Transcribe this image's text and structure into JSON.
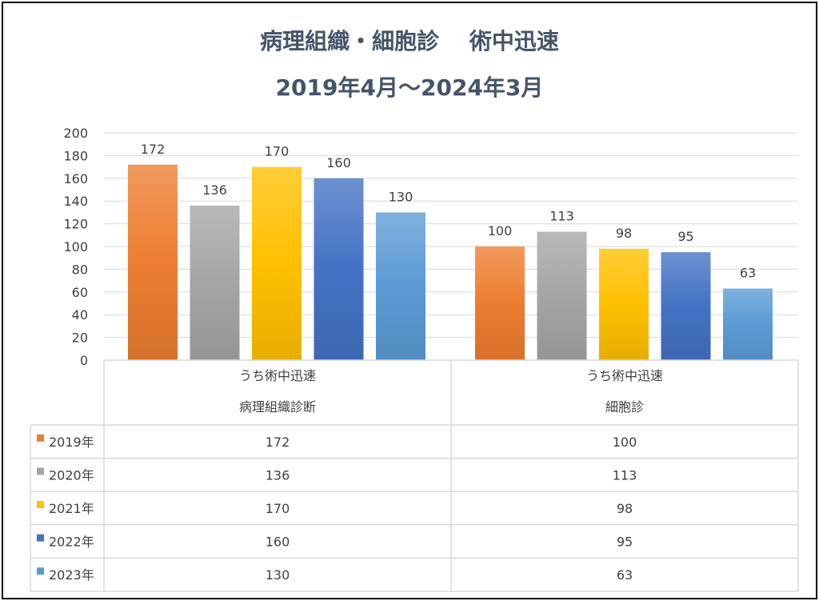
{
  "chart_data": {
    "type": "bar",
    "title": "病理組織・細胞診　 術中迅速",
    "subtitle": "2019年4月～2024年3月",
    "categories": [
      {
        "line1": "うち術中迅速",
        "line2": "病理組織診断"
      },
      {
        "line1": "うち術中迅速",
        "line2": "細胞診"
      }
    ],
    "series": [
      {
        "name": "2019年",
        "values": [
          172,
          100
        ],
        "color": "#ed7d31"
      },
      {
        "name": "2020年",
        "values": [
          136,
          113
        ],
        "color": "#a5a5a5"
      },
      {
        "name": "2021年",
        "values": [
          170,
          98
        ],
        "color": "#ffc000"
      },
      {
        "name": "2022年",
        "values": [
          160,
          95
        ],
        "color": "#4472c4"
      },
      {
        "name": "2023年",
        "values": [
          130,
          63
        ],
        "color": "#5b9bd5"
      }
    ],
    "ylim": [
      0,
      200
    ],
    "yticks": [
      0,
      20,
      40,
      60,
      80,
      100,
      120,
      140,
      160,
      180,
      200
    ],
    "grid": true,
    "data_table": true,
    "legend": "in data table"
  }
}
